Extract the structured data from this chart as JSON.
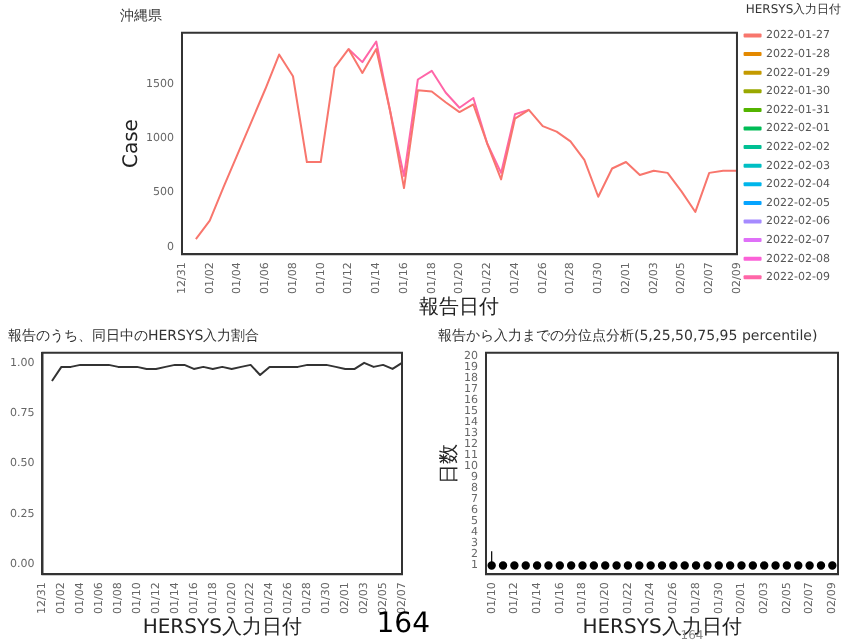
{
  "chart_data": [
    {
      "type": "line",
      "title": "沖縄県",
      "xlabel": "報告日付",
      "ylabel": "Case",
      "legend_title": "HERSYS入力日付",
      "legend": "right",
      "grid": false,
      "marker": "none",
      "categories": [
        "12/31",
        null,
        "01/02",
        null,
        "01/04",
        null,
        "01/06",
        null,
        "01/08",
        null,
        "01/10",
        null,
        "01/12",
        null,
        "01/14",
        null,
        "01/16",
        null,
        "01/18",
        null,
        "01/20",
        null,
        "01/22",
        null,
        "01/24",
        null,
        "01/26",
        null,
        "01/28",
        null,
        "01/30",
        null,
        "02/01",
        null,
        "02/03",
        null,
        "02/05",
        null,
        "02/07",
        null,
        "02/09"
      ],
      "ylim": [
        -70,
        1970
      ],
      "yticks": [
        0,
        500,
        1000,
        1500
      ],
      "series": [
        {
          "name": "2022-01-27",
          "color": "#f8766d",
          "values": [
            null,
            70,
            240,
            550,
            850,
            1150,
            1450,
            1770,
            1570,
            780,
            780,
            1650,
            1820,
            1600,
            1820,
            1250,
            540,
            1440,
            1430,
            1330,
            1240,
            1310,
            950,
            620,
            1180,
            1260,
            1110,
            1060,
            970,
            800,
            460,
            720,
            780,
            660,
            700,
            680,
            510,
            320,
            680,
            700,
            700
          ]
        },
        {
          "name": "2022-01-28",
          "color": "#e38900",
          "values": [
            null,
            null,
            null,
            null,
            null,
            null,
            null,
            null,
            null,
            null,
            null,
            null,
            null,
            null,
            null,
            null,
            null,
            null,
            null,
            null,
            null,
            null,
            null,
            null,
            null,
            null,
            null,
            null,
            null,
            null,
            null,
            null,
            null,
            null,
            null,
            null,
            null,
            null,
            null,
            null,
            null
          ]
        },
        {
          "name": "2022-01-29",
          "color": "#c49a00",
          "values": [
            null,
            null,
            null,
            null,
            null,
            null,
            null,
            null,
            null,
            null,
            null,
            null,
            null,
            null,
            null,
            null,
            null,
            null,
            null,
            null,
            null,
            null,
            null,
            null,
            null,
            null,
            null,
            null,
            null,
            null,
            null,
            null,
            null,
            null,
            null,
            null,
            null,
            null,
            null,
            null,
            null
          ]
        },
        {
          "name": "2022-01-30",
          "color": "#99a800",
          "values": [
            null,
            null,
            null,
            null,
            null,
            null,
            null,
            null,
            null,
            null,
            null,
            null,
            null,
            null,
            null,
            null,
            null,
            null,
            null,
            null,
            null,
            null,
            null,
            null,
            null,
            null,
            null,
            null,
            null,
            null,
            null,
            null,
            null,
            null,
            null,
            null,
            null,
            null,
            null,
            null,
            null
          ]
        },
        {
          "name": "2022-01-31",
          "color": "#53b400",
          "values": [
            null,
            null,
            null,
            null,
            null,
            null,
            null,
            null,
            null,
            null,
            null,
            null,
            null,
            null,
            null,
            null,
            null,
            null,
            null,
            null,
            null,
            null,
            null,
            null,
            null,
            null,
            null,
            null,
            null,
            null,
            null,
            null,
            null,
            null,
            null,
            null,
            null,
            null,
            null,
            null,
            null
          ]
        },
        {
          "name": "2022-02-01",
          "color": "#00bc56",
          "values": [
            null,
            null,
            null,
            null,
            null,
            null,
            null,
            null,
            null,
            null,
            null,
            null,
            null,
            null,
            null,
            null,
            null,
            null,
            null,
            null,
            null,
            null,
            null,
            null,
            null,
            null,
            null,
            null,
            null,
            null,
            null,
            null,
            null,
            null,
            null,
            null,
            null,
            null,
            null,
            null,
            null
          ]
        },
        {
          "name": "2022-02-02",
          "color": "#00c094",
          "values": [
            null,
            null,
            null,
            null,
            null,
            null,
            null,
            null,
            null,
            null,
            null,
            null,
            null,
            null,
            null,
            null,
            null,
            null,
            null,
            null,
            null,
            null,
            null,
            null,
            null,
            null,
            null,
            null,
            null,
            null,
            null,
            null,
            null,
            null,
            null,
            null,
            null,
            null,
            null,
            null,
            null
          ]
        },
        {
          "name": "2022-02-03",
          "color": "#00bfc4",
          "values": [
            null,
            null,
            null,
            null,
            null,
            null,
            null,
            null,
            null,
            null,
            null,
            null,
            null,
            null,
            null,
            null,
            null,
            null,
            null,
            null,
            null,
            null,
            null,
            null,
            null,
            null,
            null,
            null,
            null,
            null,
            null,
            null,
            null,
            null,
            null,
            null,
            null,
            null,
            null,
            null,
            null
          ]
        },
        {
          "name": "2022-02-04",
          "color": "#00b6eb",
          "values": [
            null,
            null,
            null,
            null,
            null,
            null,
            null,
            null,
            null,
            null,
            null,
            null,
            null,
            null,
            null,
            null,
            null,
            null,
            null,
            null,
            null,
            null,
            null,
            null,
            null,
            null,
            null,
            null,
            null,
            null,
            null,
            null,
            null,
            null,
            null,
            null,
            null,
            null,
            null,
            null,
            null
          ]
        },
        {
          "name": "2022-02-05",
          "color": "#06a4ff",
          "values": [
            null,
            null,
            null,
            null,
            null,
            null,
            null,
            null,
            null,
            null,
            null,
            null,
            null,
            null,
            null,
            null,
            null,
            null,
            null,
            null,
            null,
            null,
            null,
            null,
            null,
            null,
            null,
            null,
            null,
            null,
            null,
            null,
            null,
            null,
            null,
            null,
            null,
            null,
            null,
            null,
            null
          ]
        },
        {
          "name": "2022-02-06",
          "color": "#a58aff",
          "values": [
            null,
            null,
            null,
            null,
            null,
            null,
            null,
            null,
            null,
            null,
            null,
            null,
            null,
            null,
            null,
            null,
            null,
            null,
            null,
            null,
            null,
            null,
            null,
            null,
            null,
            null,
            null,
            null,
            null,
            null,
            null,
            null,
            null,
            null,
            null,
            null,
            null,
            null,
            null,
            null,
            null
          ]
        },
        {
          "name": "2022-02-07",
          "color": "#df70f8",
          "values": [
            null,
            null,
            null,
            null,
            null,
            null,
            null,
            null,
            null,
            null,
            null,
            null,
            null,
            null,
            null,
            null,
            null,
            null,
            null,
            null,
            null,
            null,
            null,
            null,
            null,
            null,
            null,
            null,
            null,
            null,
            null,
            null,
            null,
            null,
            null,
            null,
            null,
            null,
            null,
            null,
            null
          ]
        },
        {
          "name": "2022-02-08",
          "color": "#fb61d7",
          "values": [
            null,
            null,
            null,
            null,
            null,
            null,
            null,
            null,
            null,
            null,
            null,
            null,
            null,
            null,
            null,
            null,
            null,
            null,
            null,
            null,
            null,
            null,
            null,
            null,
            null,
            null,
            null,
            null,
            null,
            null,
            null,
            null,
            null,
            null,
            null,
            null,
            null,
            null,
            null,
            null,
            null
          ]
        },
        {
          "name": "2022-02-09",
          "color": "#ff66a8",
          "values": [
            null,
            null,
            null,
            null,
            null,
            null,
            null,
            null,
            null,
            null,
            null,
            null,
            1820,
            1700,
            1890,
            1250,
            650,
            1540,
            1620,
            1420,
            1280,
            1370,
            950,
            680,
            1220,
            1260,
            null,
            null,
            null,
            null,
            null,
            null,
            null,
            null,
            null,
            null,
            null,
            null,
            null,
            null,
            null
          ]
        }
      ]
    },
    {
      "type": "line",
      "title": "報告のうち、同日中のHERSYS入力割合",
      "xlabel": "HERSYS入力日付",
      "legend": false,
      "grid": false,
      "marker": "none",
      "annotations": [
        "164"
      ],
      "categories": [
        "12/31",
        null,
        "01/02",
        null,
        "01/04",
        null,
        "01/06",
        null,
        "01/08",
        null,
        "01/10",
        null,
        "01/12",
        null,
        "01/14",
        null,
        "01/16",
        null,
        "01/18",
        null,
        "01/20",
        null,
        "01/22",
        null,
        "01/24",
        null,
        "01/26",
        null,
        "01/28",
        null,
        "01/30",
        null,
        "02/01",
        null,
        "02/03",
        null,
        "02/05",
        null,
        "02/07"
      ],
      "ylim": [
        -0.05,
        1.05
      ],
      "yticks": [
        {
          "value": 0,
          "label": "0.00"
        },
        {
          "value": 0.25,
          "label": "0.25"
        },
        {
          "value": 0.5,
          "label": "0.50"
        },
        {
          "value": 0.75,
          "label": "0.75"
        },
        {
          "value": 1,
          "label": "1.00"
        }
      ],
      "series": [
        {
          "color": "#333333",
          "values": [
            null,
            0.91,
            0.98,
            0.98,
            0.99,
            0.99,
            0.99,
            0.99,
            0.98,
            0.98,
            0.98,
            0.97,
            0.97,
            0.98,
            0.99,
            0.99,
            0.97,
            0.98,
            0.97,
            0.98,
            0.97,
            0.98,
            0.99,
            0.94,
            0.98,
            0.98,
            0.98,
            0.98,
            0.99,
            0.99,
            0.99,
            0.98,
            0.97,
            0.97,
            1.0,
            0.98,
            0.99,
            0.97,
            1.0
          ]
        }
      ]
    },
    {
      "type": "scatter",
      "title": "報告から入力までの分位点分析(5,25,50,75,95 percentile)",
      "xlabel": "HERSYS入力日付",
      "ylabel": "日数",
      "legend": false,
      "grid": false,
      "marker": "circle",
      "annotations": [
        "164"
      ],
      "categories": [
        "01/10",
        null,
        "01/12",
        null,
        "01/14",
        null,
        "01/16",
        null,
        "01/18",
        null,
        "01/20",
        null,
        "01/22",
        null,
        "01/24",
        null,
        "01/26",
        null,
        "01/28",
        null,
        "01/30",
        null,
        "02/01",
        null,
        "02/03",
        null,
        "02/05",
        null,
        "02/07",
        null,
        "02/09"
      ],
      "ylim": [
        0.2,
        20.3
      ],
      "yticks": [
        1,
        2,
        3,
        4,
        5,
        6,
        7,
        8,
        9,
        10,
        11,
        12,
        13,
        14,
        15,
        16,
        17,
        18,
        19,
        20
      ],
      "series": [
        {
          "color": "#000000",
          "values": [
            1,
            1,
            1,
            1,
            1,
            1,
            1,
            1,
            1,
            1,
            1,
            1,
            1,
            1,
            1,
            1,
            1,
            1,
            1,
            1,
            1,
            1,
            1,
            1,
            1,
            1,
            1,
            1,
            1,
            1,
            1
          ],
          "errors": [
            [
              1,
              2.3
            ],
            null,
            null,
            null,
            null,
            null,
            null,
            null,
            null,
            null,
            null,
            null,
            null,
            null,
            null,
            null,
            null,
            null,
            null,
            null,
            null,
            null,
            null,
            null,
            null,
            null,
            null,
            null,
            null,
            null,
            null
          ]
        }
      ]
    }
  ]
}
